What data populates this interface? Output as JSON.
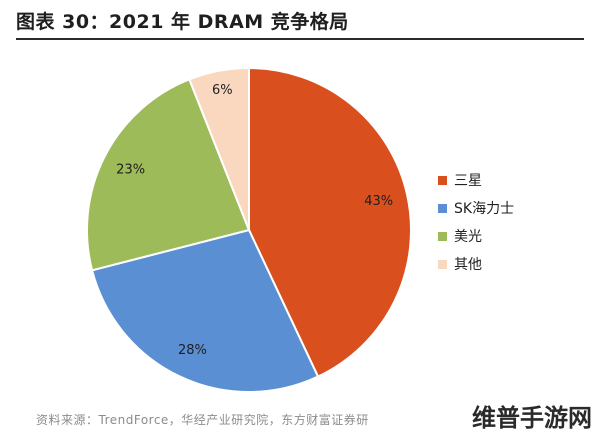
{
  "header": {
    "title": "图表 30：2021 年 DRAM 竞争格局"
  },
  "chart_data": {
    "type": "pie",
    "title": "",
    "slices": [
      {
        "label": "三星",
        "value": 43,
        "display": "43%",
        "color": "#d9501e"
      },
      {
        "label": "SK海力士",
        "value": 28,
        "display": "28%",
        "color": "#5b8fd3"
      },
      {
        "label": "美光",
        "value": 23,
        "display": "23%",
        "color": "#9dbb59"
      },
      {
        "label": "其他",
        "value": 6,
        "display": "6%",
        "color": "#f9d8bf"
      }
    ],
    "legend_position": "right"
  },
  "footer": {
    "source": "资料来源：TrendForce，华经产业研究院，东方财富证券研",
    "watermark": "维普手游网"
  }
}
